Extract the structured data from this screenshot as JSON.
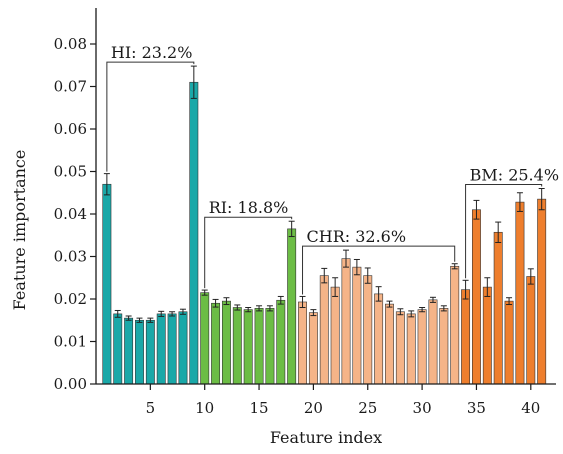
{
  "chart_data": {
    "type": "bar",
    "xlabel": "Feature index",
    "ylabel": "Feature importance",
    "xlim": [
      0,
      41.5
    ],
    "ylim": [
      0,
      0.088
    ],
    "x_ticks": [
      "5",
      "10",
      "15",
      "20",
      "25",
      "30",
      "35",
      "40"
    ],
    "y_ticks": [
      "0.00",
      "0.01",
      "0.02",
      "0.03",
      "0.04",
      "0.05",
      "0.06",
      "0.07",
      "0.08"
    ],
    "groups": [
      {
        "label": "HI: 23.2%",
        "start": 1,
        "end": 9,
        "color": "#1aa8a8"
      },
      {
        "label": "RI: 18.8%",
        "start": 10,
        "end": 18,
        "color": "#6cbd45"
      },
      {
        "label": "CHR: 32.6%",
        "start": 19,
        "end": 33,
        "color": "#f5b488"
      },
      {
        "label": "BM: 25.4%",
        "start": 34,
        "end": 41,
        "color": "#ee7e2d"
      }
    ],
    "x": [
      1,
      2,
      3,
      4,
      5,
      6,
      7,
      8,
      9,
      10,
      11,
      12,
      13,
      14,
      15,
      16,
      17,
      18,
      19,
      20,
      21,
      22,
      23,
      24,
      25,
      26,
      27,
      28,
      29,
      30,
      31,
      32,
      33,
      34,
      35,
      36,
      37,
      38,
      39,
      40,
      41
    ],
    "values": [
      0.047,
      0.0165,
      0.0155,
      0.015,
      0.015,
      0.0165,
      0.0165,
      0.017,
      0.071,
      0.0215,
      0.019,
      0.0195,
      0.018,
      0.0175,
      0.0178,
      0.0178,
      0.0197,
      0.0365,
      0.0193,
      0.0168,
      0.0255,
      0.0228,
      0.0295,
      0.0275,
      0.0255,
      0.0212,
      0.0188,
      0.017,
      0.0165,
      0.0175,
      0.0198,
      0.0178,
      0.0277,
      0.0222,
      0.041,
      0.0228,
      0.0357,
      0.0195,
      0.0428,
      0.0253,
      0.0435
    ],
    "errors": [
      0.0025,
      0.0008,
      0.0005,
      0.0005,
      0.0005,
      0.0006,
      0.0005,
      0.0006,
      0.0038,
      0.0006,
      0.0009,
      0.0008,
      0.0006,
      0.0005,
      0.0006,
      0.0006,
      0.0009,
      0.0018,
      0.0013,
      0.0007,
      0.0017,
      0.0022,
      0.002,
      0.0018,
      0.0018,
      0.0017,
      0.0007,
      0.0007,
      0.0007,
      0.0005,
      0.0006,
      0.0006,
      0.0006,
      0.0022,
      0.0022,
      0.0022,
      0.0024,
      0.0008,
      0.0022,
      0.0018,
      0.0025
    ]
  }
}
